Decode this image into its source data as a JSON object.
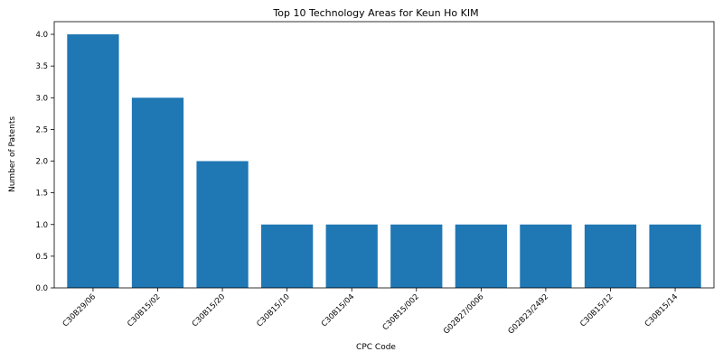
{
  "chart_data": {
    "type": "bar",
    "title": "Top 10 Technology Areas for Keun Ho KIM",
    "xlabel": "CPC Code",
    "ylabel": "Number of Patents",
    "categories": [
      "C30B29/06",
      "C30B15/02",
      "C30B15/20",
      "C30B15/10",
      "C30B15/04",
      "C30B15/002",
      "G02B27/0006",
      "G02B23/2492",
      "C30B15/12",
      "C30B15/14"
    ],
    "values": [
      4,
      3,
      2,
      1,
      1,
      1,
      1,
      1,
      1,
      1
    ],
    "ylim": [
      0,
      4.2
    ],
    "yticks": [
      "0.0",
      "0.5",
      "1.0",
      "1.5",
      "2.0",
      "2.5",
      "3.0",
      "3.5",
      "4.0"
    ],
    "grid": false,
    "legend": "none",
    "bar_color": "#1f77b4"
  }
}
